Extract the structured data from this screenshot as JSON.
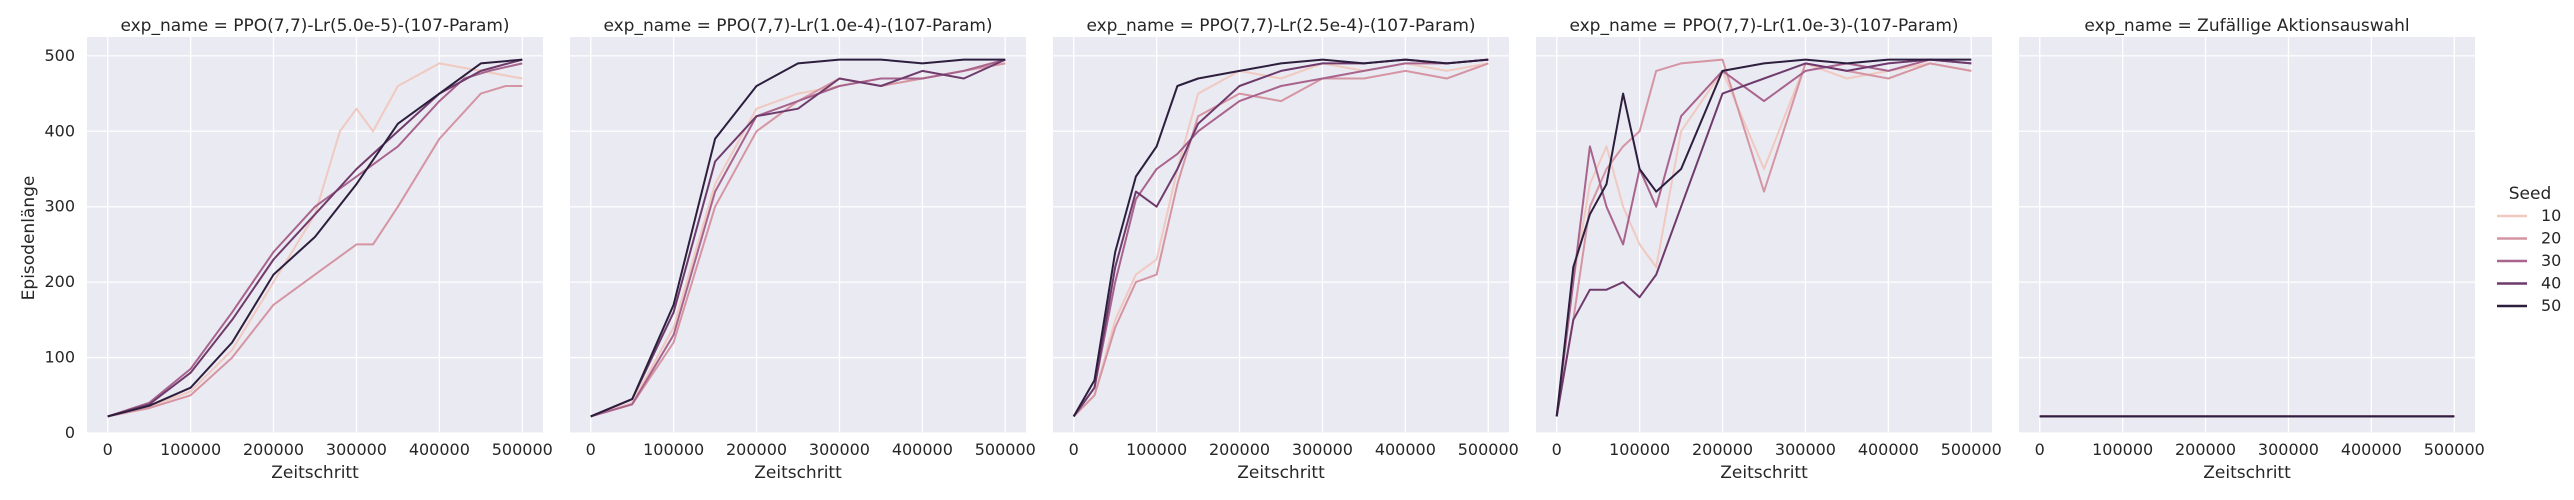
{
  "chart_data": {
    "type": "line",
    "ylabel": "Episodenlänge",
    "xlabel": "Zeitschritt",
    "xlim": [
      -25000,
      525000
    ],
    "ylim": [
      0,
      525
    ],
    "xticks": [
      0,
      100000,
      200000,
      300000,
      400000,
      500000
    ],
    "yticks": [
      0,
      100,
      200,
      300,
      400,
      500
    ],
    "grid": true,
    "legend": {
      "title": "Seed",
      "placement": "right",
      "entries": [
        {
          "label": "10",
          "color": "#f0c9c0"
        },
        {
          "label": "20",
          "color": "#d595a3"
        },
        {
          "label": "30",
          "color": "#a8648d"
        },
        {
          "label": "40",
          "color": "#6f3b6c"
        },
        {
          "label": "50",
          "color": "#2d1e3e"
        }
      ]
    },
    "panels": [
      {
        "title": "exp_name = PPO(7,7)-Lr(5.0e-5)-(107-Param)",
        "series": [
          {
            "seed": "10",
            "x": [
              0,
              50000,
              100000,
              150000,
              200000,
              250000,
              280000,
              300000,
              320000,
              350000,
              400000,
              450000,
              500000
            ],
            "y": [
              22,
              35,
              55,
              110,
              200,
              290,
              400,
              430,
              400,
              460,
              490,
              480,
              470
            ]
          },
          {
            "seed": "20",
            "x": [
              0,
              50000,
              100000,
              150000,
              200000,
              250000,
              300000,
              320000,
              350000,
              400000,
              450000,
              480000,
              500000
            ],
            "y": [
              22,
              33,
              50,
              100,
              170,
              210,
              250,
              250,
              300,
              390,
              450,
              460,
              460
            ]
          },
          {
            "seed": "30",
            "x": [
              0,
              50000,
              100000,
              150000,
              200000,
              250000,
              300000,
              350000,
              400000,
              430000,
              460000,
              500000
            ],
            "y": [
              22,
              40,
              85,
              160,
              240,
              300,
              340,
              380,
              440,
              470,
              480,
              490
            ]
          },
          {
            "seed": "40",
            "x": [
              0,
              50000,
              100000,
              150000,
              200000,
              250000,
              300000,
              350000,
              400000,
              450000,
              500000
            ],
            "y": [
              22,
              38,
              80,
              150,
              230,
              290,
              350,
              400,
              450,
              480,
              495
            ]
          },
          {
            "seed": "50",
            "x": [
              0,
              50000,
              100000,
              150000,
              200000,
              250000,
              300000,
              350000,
              400000,
              450000,
              500000
            ],
            "y": [
              22,
              36,
              60,
              120,
              210,
              260,
              330,
              410,
              450,
              490,
              495
            ]
          }
        ]
      },
      {
        "title": "exp_name = PPO(7,7)-Lr(1.0e-4)-(107-Param)",
        "series": [
          {
            "seed": "10",
            "x": [
              0,
              50000,
              100000,
              150000,
              200000,
              250000,
              300000,
              350000,
              400000,
              450000,
              500000
            ],
            "y": [
              22,
              40,
              140,
              330,
              430,
              450,
              460,
              470,
              470,
              480,
              490
            ]
          },
          {
            "seed": "20",
            "x": [
              0,
              50000,
              100000,
              150000,
              200000,
              250000,
              300000,
              350000,
              400000,
              450000,
              500000
            ],
            "y": [
              22,
              38,
              120,
              300,
              400,
              440,
              470,
              460,
              470,
              480,
              490
            ]
          },
          {
            "seed": "30",
            "x": [
              0,
              50000,
              100000,
              150000,
              200000,
              250000,
              300000,
              350000,
              400000,
              450000,
              500000
            ],
            "y": [
              22,
              38,
              130,
              320,
              420,
              440,
              460,
              470,
              470,
              480,
              495
            ]
          },
          {
            "seed": "40",
            "x": [
              0,
              50000,
              100000,
              150000,
              200000,
              250000,
              300000,
              350000,
              400000,
              450000,
              500000
            ],
            "y": [
              22,
              45,
              160,
              360,
              420,
              430,
              470,
              460,
              480,
              470,
              495
            ]
          },
          {
            "seed": "50",
            "x": [
              0,
              50000,
              100000,
              150000,
              200000,
              250000,
              300000,
              350000,
              400000,
              450000,
              500000
            ],
            "y": [
              22,
              45,
              170,
              390,
              460,
              490,
              495,
              495,
              490,
              495,
              495
            ]
          }
        ]
      },
      {
        "title": "exp_name = PPO(7,7)-Lr(2.5e-4)-(107-Param)",
        "series": [
          {
            "seed": "10",
            "x": [
              0,
              25000,
              50000,
              75000,
              100000,
              125000,
              150000,
              200000,
              250000,
              300000,
              350000,
              400000,
              450000,
              500000
            ],
            "y": [
              22,
              50,
              150,
              210,
              230,
              350,
              450,
              480,
              470,
              490,
              480,
              490,
              480,
              490
            ]
          },
          {
            "seed": "20",
            "x": [
              0,
              25000,
              50000,
              75000,
              100000,
              125000,
              150000,
              200000,
              250000,
              300000,
              350000,
              400000,
              450000,
              500000
            ],
            "y": [
              22,
              50,
              140,
              200,
              210,
              330,
              420,
              450,
              440,
              470,
              470,
              480,
              470,
              490
            ]
          },
          {
            "seed": "30",
            "x": [
              0,
              25000,
              50000,
              75000,
              100000,
              125000,
              150000,
              200000,
              250000,
              300000,
              350000,
              400000,
              450000,
              500000
            ],
            "y": [
              22,
              60,
              200,
              310,
              350,
              370,
              400,
              440,
              460,
              470,
              480,
              490,
              490,
              495
            ]
          },
          {
            "seed": "40",
            "x": [
              0,
              25000,
              50000,
              75000,
              100000,
              125000,
              150000,
              200000,
              250000,
              300000,
              350000,
              400000,
              450000,
              500000
            ],
            "y": [
              22,
              60,
              220,
              320,
              300,
              350,
              410,
              460,
              480,
              490,
              490,
              495,
              490,
              495
            ]
          },
          {
            "seed": "50",
            "x": [
              0,
              25000,
              50000,
              75000,
              100000,
              125000,
              150000,
              200000,
              250000,
              300000,
              350000,
              400000,
              450000,
              500000
            ],
            "y": [
              22,
              70,
              240,
              340,
              380,
              460,
              470,
              480,
              490,
              495,
              490,
              495,
              490,
              495
            ]
          }
        ]
      },
      {
        "title": "exp_name = PPO(7,7)-Lr(1.0e-3)-(107-Param)",
        "series": [
          {
            "seed": "10",
            "x": [
              0,
              20000,
              40000,
              60000,
              80000,
              100000,
              120000,
              150000,
              200000,
              250000,
              300000,
              350000,
              400000,
              450000,
              500000
            ],
            "y": [
              22,
              200,
              330,
              380,
              300,
              250,
              220,
              400,
              480,
              350,
              490,
              470,
              480,
              490,
              480
            ]
          },
          {
            "seed": "20",
            "x": [
              0,
              20000,
              40000,
              60000,
              80000,
              100000,
              120000,
              150000,
              200000,
              250000,
              300000,
              350000,
              400000,
              450000,
              500000
            ],
            "y": [
              22,
              150,
              300,
              350,
              380,
              400,
              480,
              490,
              495,
              320,
              490,
              480,
              470,
              490,
              480
            ]
          },
          {
            "seed": "30",
            "x": [
              0,
              20000,
              40000,
              60000,
              80000,
              100000,
              120000,
              150000,
              200000,
              250000,
              300000,
              350000,
              400000,
              450000,
              500000
            ],
            "y": [
              22,
              200,
              380,
              300,
              250,
              350,
              300,
              420,
              480,
              440,
              480,
              490,
              480,
              495,
              490
            ]
          },
          {
            "seed": "40",
            "x": [
              0,
              20000,
              40000,
              60000,
              80000,
              100000,
              120000,
              150000,
              200000,
              250000,
              300000,
              350000,
              400000,
              450000,
              500000
            ],
            "y": [
              22,
              150,
              190,
              190,
              200,
              180,
              210,
              300,
              450,
              470,
              490,
              480,
              490,
              495,
              490
            ]
          },
          {
            "seed": "50",
            "x": [
              0,
              20000,
              40000,
              60000,
              80000,
              100000,
              120000,
              150000,
              200000,
              250000,
              300000,
              350000,
              400000,
              450000,
              500000
            ],
            "y": [
              22,
              220,
              290,
              330,
              450,
              350,
              320,
              350,
              480,
              490,
              495,
              490,
              495,
              495,
              495
            ]
          }
        ]
      },
      {
        "title": "exp_name = Zufällige Aktionsauswahl",
        "series": [
          {
            "seed": "10",
            "x": [
              0,
              100000,
              200000,
              300000,
              400000,
              500000
            ],
            "y": [
              22,
              22,
              22,
              22,
              22,
              22
            ]
          },
          {
            "seed": "20",
            "x": [
              0,
              100000,
              200000,
              300000,
              400000,
              500000
            ],
            "y": [
              22,
              22,
              22,
              22,
              22,
              22
            ]
          },
          {
            "seed": "30",
            "x": [
              0,
              100000,
              200000,
              300000,
              400000,
              500000
            ],
            "y": [
              22,
              22,
              22,
              22,
              22,
              22
            ]
          },
          {
            "seed": "40",
            "x": [
              0,
              100000,
              200000,
              300000,
              400000,
              500000
            ],
            "y": [
              22,
              22,
              22,
              22,
              22,
              22
            ]
          },
          {
            "seed": "50",
            "x": [
              0,
              100000,
              200000,
              300000,
              400000,
              500000
            ],
            "y": [
              22,
              22,
              22,
              22,
              22,
              22
            ]
          }
        ]
      }
    ]
  }
}
